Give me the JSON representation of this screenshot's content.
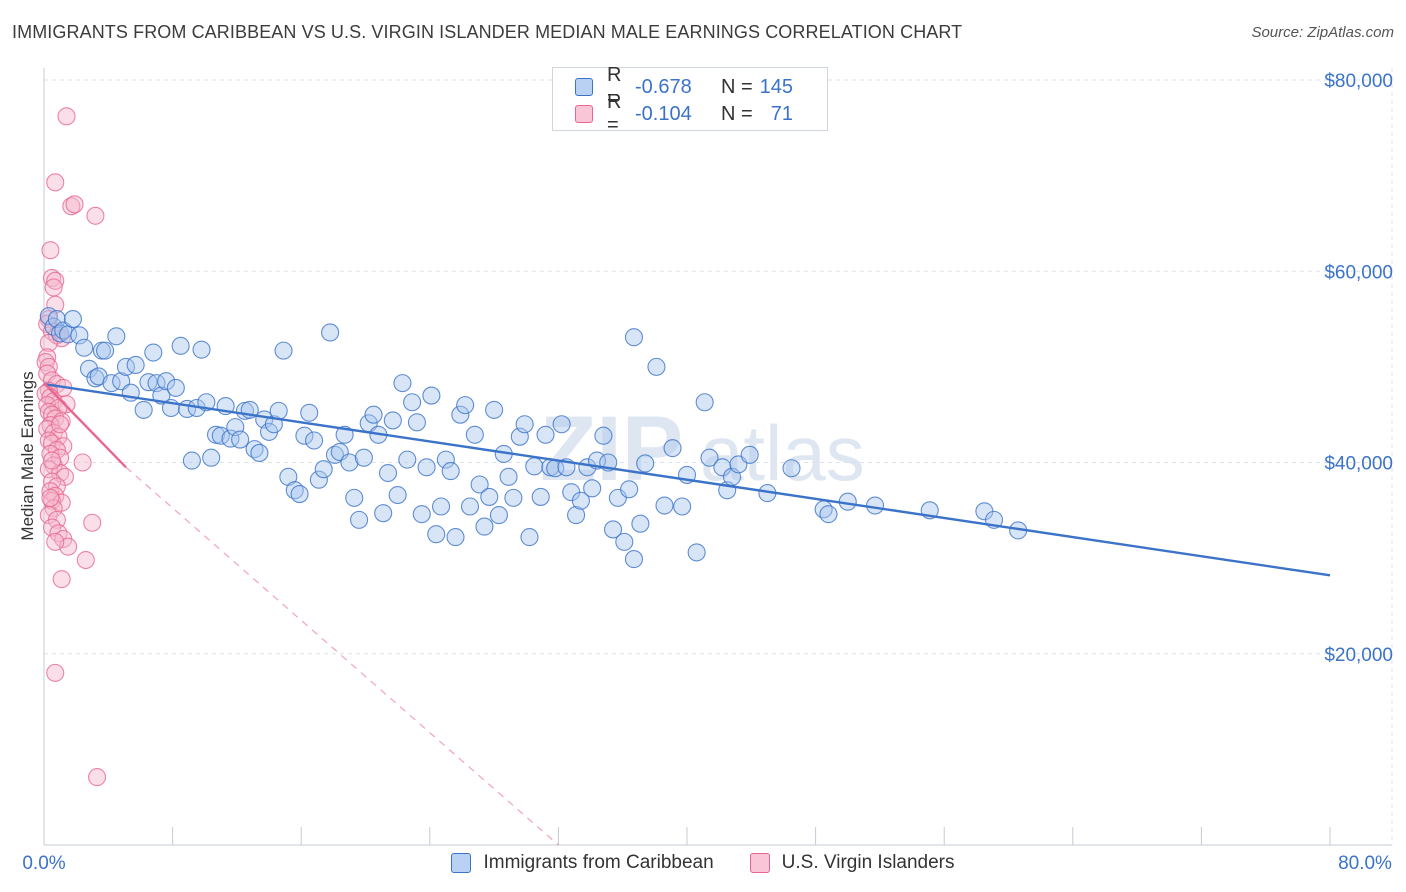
{
  "header": {
    "title": "IMMIGRANTS FROM CARIBBEAN VS U.S. VIRGIN ISLANDER MEDIAN MALE EARNINGS CORRELATION CHART",
    "source": "Source: ZipAtlas.com"
  },
  "legend_top": {
    "rows": [
      {
        "r_label": "R =",
        "r_value": "-0.678",
        "n_label": "N =",
        "n_value": "145"
      },
      {
        "r_label": "R =",
        "r_value": "-0.104",
        "n_label": "N =",
        "n_value": "71"
      }
    ]
  },
  "legend_bottom": {
    "items": [
      "Immigrants from Caribbean",
      "U.S. Virgin Islanders"
    ]
  },
  "colors": {
    "blue": "#3b73c9",
    "blue_fill": "#a9c6ee",
    "pink": "#e9668f",
    "pink_fill": "#f5b8cb",
    "grid": "#dde3ea"
  },
  "chart_data": {
    "type": "scatter",
    "xlabel": "",
    "ylabel": "Median Male Earnings",
    "xlim": [
      0,
      80
    ],
    "ylim": [
      0,
      80000
    ],
    "x_tick_labels": [
      "0.0%",
      "80.0%"
    ],
    "y_ticks": [
      20000,
      40000,
      60000,
      80000
    ],
    "y_tick_labels": [
      "$20,000",
      "$40,000",
      "$60,000",
      "$80,000"
    ],
    "grid": true,
    "legend_position": "top-center",
    "series": [
      {
        "name": "Immigrants from Caribbean",
        "color": "#3b73c9",
        "trend": {
          "x": [
            0,
            80
          ],
          "y": [
            48200,
            28200
          ],
          "style": "solid"
        },
        "points": [
          [
            0.3,
            55.3
          ],
          [
            0.6,
            54.2
          ],
          [
            0.8,
            55.0
          ],
          [
            1.0,
            53.5
          ],
          [
            1.2,
            53.8
          ],
          [
            1.5,
            53.4
          ],
          [
            1.8,
            55.0
          ],
          [
            2.2,
            53.3
          ],
          [
            2.5,
            52.0
          ],
          [
            2.8,
            49.8
          ],
          [
            3.2,
            48.8
          ],
          [
            3.4,
            49.0
          ],
          [
            3.6,
            51.7
          ],
          [
            3.8,
            51.7
          ],
          [
            4.2,
            48.3
          ],
          [
            4.5,
            53.2
          ],
          [
            4.8,
            48.5
          ],
          [
            5.1,
            50.0
          ],
          [
            5.4,
            47.3
          ],
          [
            5.7,
            50.2
          ],
          [
            6.2,
            45.5
          ],
          [
            6.5,
            48.4
          ],
          [
            6.8,
            51.5
          ],
          [
            7.0,
            48.3
          ],
          [
            7.3,
            47.0
          ],
          [
            7.6,
            48.5
          ],
          [
            7.9,
            45.7
          ],
          [
            8.2,
            47.8
          ],
          [
            8.5,
            52.2
          ],
          [
            8.9,
            45.6
          ],
          [
            9.2,
            40.2
          ],
          [
            9.5,
            45.7
          ],
          [
            9.8,
            51.8
          ],
          [
            10.1,
            46.3
          ],
          [
            10.4,
            40.5
          ],
          [
            10.7,
            42.9
          ],
          [
            11.0,
            42.8
          ],
          [
            11.3,
            45.9
          ],
          [
            11.6,
            42.5
          ],
          [
            11.9,
            43.7
          ],
          [
            12.2,
            42.4
          ],
          [
            12.5,
            45.4
          ],
          [
            12.8,
            45.5
          ],
          [
            13.1,
            41.4
          ],
          [
            13.4,
            41.0
          ],
          [
            13.7,
            44.5
          ],
          [
            14.0,
            43.2
          ],
          [
            14.3,
            44.0
          ],
          [
            14.6,
            45.4
          ],
          [
            14.9,
            51.7
          ],
          [
            15.2,
            38.5
          ],
          [
            15.6,
            37.1
          ],
          [
            15.9,
            36.7
          ],
          [
            16.2,
            42.8
          ],
          [
            16.5,
            45.2
          ],
          [
            16.8,
            42.3
          ],
          [
            17.1,
            38.2
          ],
          [
            17.4,
            39.3
          ],
          [
            17.8,
            53.6
          ],
          [
            18.1,
            40.8
          ],
          [
            18.4,
            41.1
          ],
          [
            18.7,
            42.9
          ],
          [
            19.0,
            40.0
          ],
          [
            19.3,
            36.3
          ],
          [
            19.6,
            34.0
          ],
          [
            19.9,
            40.5
          ],
          [
            20.2,
            44.1
          ],
          [
            20.5,
            45.0
          ],
          [
            20.8,
            42.9
          ],
          [
            21.1,
            34.7
          ],
          [
            21.4,
            38.9
          ],
          [
            21.7,
            44.4
          ],
          [
            22.0,
            36.6
          ],
          [
            22.3,
            48.3
          ],
          [
            22.6,
            40.3
          ],
          [
            22.9,
            46.3
          ],
          [
            23.2,
            44.2
          ],
          [
            23.5,
            34.6
          ],
          [
            23.8,
            39.5
          ],
          [
            24.1,
            47.0
          ],
          [
            24.4,
            32.5
          ],
          [
            24.7,
            35.4
          ],
          [
            25.0,
            40.3
          ],
          [
            25.3,
            39.1
          ],
          [
            25.6,
            32.2
          ],
          [
            25.9,
            45.0
          ],
          [
            26.2,
            46.0
          ],
          [
            26.5,
            35.4
          ],
          [
            26.8,
            42.9
          ],
          [
            27.1,
            37.7
          ],
          [
            27.4,
            33.3
          ],
          [
            27.7,
            36.4
          ],
          [
            28.0,
            45.5
          ],
          [
            28.3,
            34.5
          ],
          [
            28.6,
            40.9
          ],
          [
            28.9,
            38.5
          ],
          [
            29.2,
            36.3
          ],
          [
            29.6,
            42.7
          ],
          [
            29.9,
            44.0
          ],
          [
            30.2,
            32.2
          ],
          [
            30.5,
            39.6
          ],
          [
            30.9,
            36.4
          ],
          [
            31.2,
            42.9
          ],
          [
            31.5,
            39.5
          ],
          [
            31.8,
            39.4
          ],
          [
            32.2,
            44.0
          ],
          [
            32.5,
            39.5
          ],
          [
            32.8,
            36.9
          ],
          [
            33.1,
            34.5
          ],
          [
            33.4,
            36.0
          ],
          [
            33.8,
            39.5
          ],
          [
            34.1,
            37.3
          ],
          [
            34.4,
            40.2
          ],
          [
            34.8,
            42.8
          ],
          [
            35.1,
            40.0
          ],
          [
            35.4,
            33.0
          ],
          [
            35.7,
            36.3
          ],
          [
            36.1,
            31.7
          ],
          [
            36.4,
            37.2
          ],
          [
            36.7,
            53.1
          ],
          [
            36.7,
            29.9
          ],
          [
            37.1,
            33.6
          ],
          [
            37.4,
            39.9
          ],
          [
            38.1,
            50.0
          ],
          [
            38.6,
            35.5
          ],
          [
            39.1,
            41.5
          ],
          [
            39.7,
            35.4
          ],
          [
            40.0,
            38.7
          ],
          [
            40.6,
            30.6
          ],
          [
            41.1,
            46.3
          ],
          [
            41.4,
            40.5
          ],
          [
            42.2,
            39.5
          ],
          [
            42.5,
            37.1
          ],
          [
            42.8,
            38.5
          ],
          [
            43.2,
            39.8
          ],
          [
            43.9,
            40.8
          ],
          [
            45.0,
            36.8
          ],
          [
            46.5,
            39.4
          ],
          [
            48.5,
            35.1
          ],
          [
            48.8,
            34.6
          ],
          [
            50.0,
            35.9
          ],
          [
            51.7,
            35.5
          ],
          [
            55.1,
            35.0
          ],
          [
            58.5,
            34.9
          ],
          [
            59.1,
            34.0
          ],
          [
            60.6,
            32.9
          ]
        ]
      },
      {
        "name": "U.S. Virgin Islanders",
        "color": "#e9668f",
        "trend": {
          "x": [
            0,
            5.1
          ],
          "y": [
            48300,
            39500
          ],
          "style": "solid",
          "extend_to": [
            32,
            0
          ],
          "extend_style": "dashed"
        },
        "points": [
          [
            1.4,
            76.2
          ],
          [
            0.7,
            69.3
          ],
          [
            1.7,
            66.8
          ],
          [
            3.2,
            65.8
          ],
          [
            1.9,
            67.0
          ],
          [
            0.4,
            62.2
          ],
          [
            0.5,
            59.3
          ],
          [
            0.7,
            59.0
          ],
          [
            0.6,
            58.3
          ],
          [
            0.7,
            56.5
          ],
          [
            0.3,
            55.0
          ],
          [
            0.2,
            54.5
          ],
          [
            0.5,
            53.7
          ],
          [
            0.8,
            53.3
          ],
          [
            1.1,
            53.0
          ],
          [
            0.3,
            52.5
          ],
          [
            0.2,
            51.0
          ],
          [
            0.1,
            50.5
          ],
          [
            0.3,
            50.0
          ],
          [
            0.2,
            49.3
          ],
          [
            0.5,
            48.6
          ],
          [
            0.8,
            48.2
          ],
          [
            1.2,
            47.8
          ],
          [
            0.3,
            47.5
          ],
          [
            0.1,
            47.2
          ],
          [
            0.4,
            46.8
          ],
          [
            0.6,
            46.4
          ],
          [
            0.2,
            46.0
          ],
          [
            1.4,
            46.1
          ],
          [
            0.9,
            45.7
          ],
          [
            0.3,
            45.3
          ],
          [
            0.5,
            45.0
          ],
          [
            0.7,
            44.6
          ],
          [
            1.1,
            44.3
          ],
          [
            0.4,
            43.9
          ],
          [
            0.2,
            43.5
          ],
          [
            0.6,
            43.1
          ],
          [
            0.9,
            42.7
          ],
          [
            0.3,
            42.3
          ],
          [
            0.5,
            42.0
          ],
          [
            1.2,
            41.7
          ],
          [
            0.8,
            41.3
          ],
          [
            0.4,
            40.9
          ],
          [
            1.0,
            40.5
          ],
          [
            2.4,
            40.0
          ],
          [
            0.6,
            39.7
          ],
          [
            0.3,
            39.3
          ],
          [
            1.0,
            38.9
          ],
          [
            1.3,
            38.5
          ],
          [
            0.5,
            38.0
          ],
          [
            0.8,
            37.5
          ],
          [
            0.4,
            37.0
          ],
          [
            0.7,
            36.5
          ],
          [
            0.5,
            36.0
          ],
          [
            1.1,
            35.8
          ],
          [
            0.6,
            35.2
          ],
          [
            0.3,
            34.5
          ],
          [
            0.8,
            34.0
          ],
          [
            3.0,
            33.7
          ],
          [
            0.5,
            33.2
          ],
          [
            0.9,
            32.6
          ],
          [
            1.2,
            32.0
          ],
          [
            1.5,
            31.2
          ],
          [
            0.7,
            31.7
          ],
          [
            2.6,
            29.8
          ],
          [
            1.1,
            27.8
          ],
          [
            0.7,
            18.0
          ],
          [
            3.3,
            7.1
          ],
          [
            0.5,
            40.2
          ],
          [
            1.0,
            44.0
          ],
          [
            0.4,
            36.3
          ]
        ]
      }
    ]
  }
}
